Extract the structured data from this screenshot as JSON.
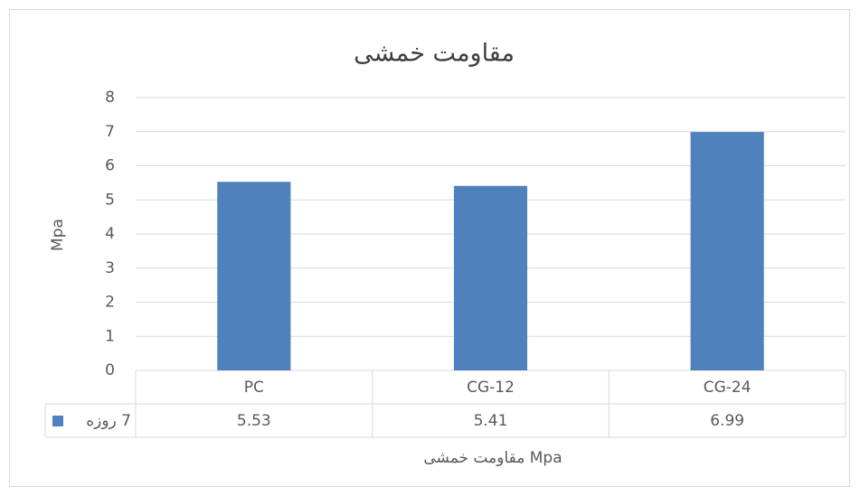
{
  "chart_data": {
    "type": "bar",
    "title": "مقاومت خمشی",
    "y_label": "Mpa",
    "x_label": "مقاومت خمشی Mpa",
    "categories": [
      "PC",
      "CG-12",
      "CG-24"
    ],
    "series": [
      {
        "name": "7 روزه",
        "color": "#4f81bd",
        "values": [
          5.53,
          5.41,
          6.99
        ]
      }
    ],
    "ylim": [
      0,
      8
    ],
    "yticks": [
      0,
      1,
      2,
      3,
      4,
      5,
      6,
      7,
      8
    ],
    "grid": true,
    "data_table": true
  }
}
